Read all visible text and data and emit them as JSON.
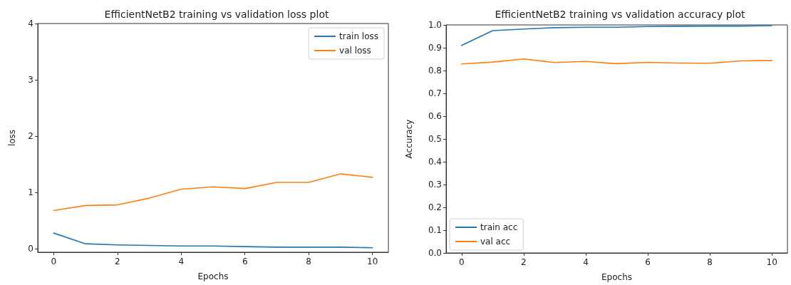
{
  "chart_data": [
    {
      "type": "line",
      "title": "EfficientNetB2 training vs validation loss plot",
      "xlabel": "Epochs",
      "ylabel": "loss",
      "x": [
        0,
        1,
        2,
        3,
        4,
        5,
        6,
        7,
        8,
        9,
        10
      ],
      "series": [
        {
          "name": "train loss",
          "color": "#1f77b4",
          "values": [
            0.28,
            0.09,
            0.07,
            0.06,
            0.05,
            0.05,
            0.04,
            0.03,
            0.03,
            0.03,
            0.02
          ]
        },
        {
          "name": "val loss",
          "color": "#ff7f0e",
          "values": [
            0.68,
            0.77,
            0.78,
            0.9,
            1.06,
            1.1,
            1.07,
            1.18,
            1.18,
            1.33,
            1.27
          ]
        }
      ],
      "xlim": [
        -0.5,
        10.5
      ],
      "xticks": [
        0,
        2,
        4,
        6,
        8,
        10
      ],
      "ylim": [
        -0.06,
        4
      ],
      "yticks": [
        0,
        1,
        2,
        3,
        4
      ],
      "grid": false,
      "legend": "top right",
      "marker": "none",
      "line_style": "solid"
    },
    {
      "type": "line",
      "title": "EfficientNetB2 training vs validation accuracy plot",
      "xlabel": "Epochs",
      "ylabel": "Accuracy",
      "x": [
        0,
        1,
        2,
        3,
        4,
        5,
        6,
        7,
        8,
        9,
        10
      ],
      "series": [
        {
          "name": "train acc",
          "color": "#1f77b4",
          "values": [
            0.91,
            0.975,
            0.982,
            0.988,
            0.99,
            0.99,
            0.993,
            0.994,
            0.995,
            0.995,
            0.997
          ]
        },
        {
          "name": "val acc",
          "color": "#ff7f0e",
          "values": [
            0.829,
            0.837,
            0.851,
            0.835,
            0.84,
            0.83,
            0.836,
            0.833,
            0.832,
            0.842,
            0.844
          ]
        }
      ],
      "xlim": [
        -0.5,
        10.5
      ],
      "xticks": [
        0,
        2,
        4,
        6,
        8,
        10
      ],
      "ylim": [
        0,
        1
      ],
      "yticks": [
        {
          "value": 0,
          "label": "0.0"
        },
        0.1,
        0.2,
        0.3,
        0.4,
        0.5,
        0.6,
        0.7,
        0.8,
        0.9,
        {
          "value": 1,
          "label": "1.0"
        }
      ],
      "grid": false,
      "legend": "bottom left",
      "marker": "none",
      "line_style": "solid"
    }
  ]
}
